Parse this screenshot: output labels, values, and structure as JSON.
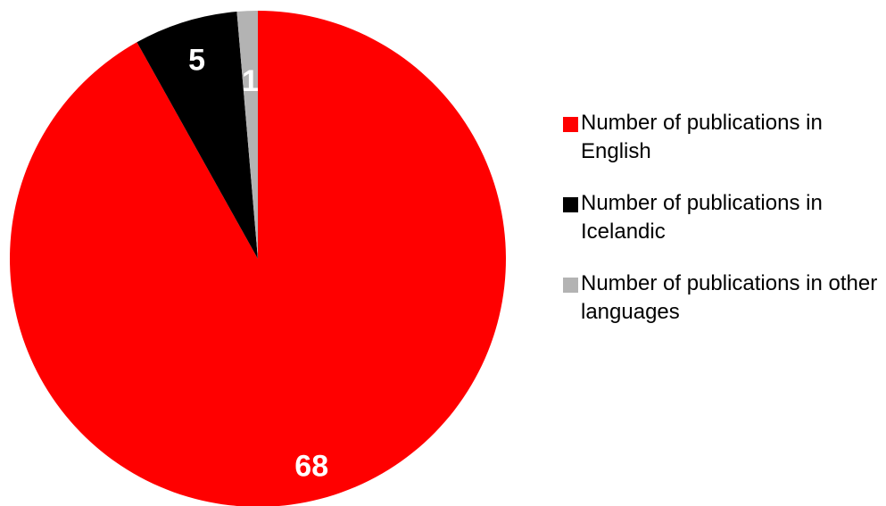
{
  "chart_data": {
    "type": "pie",
    "title": "",
    "legend_position": "right",
    "slices": [
      {
        "label": "Number of publications in English",
        "value": 68,
        "color": "#ff0000",
        "data_label": "68"
      },
      {
        "label": "Number of publications in Icelandic",
        "value": 5,
        "color": "#000000",
        "data_label": "5"
      },
      {
        "label": "Number of publications in other languages",
        "value": 1,
        "color": "#b3b3b3",
        "data_label": "1"
      }
    ]
  }
}
